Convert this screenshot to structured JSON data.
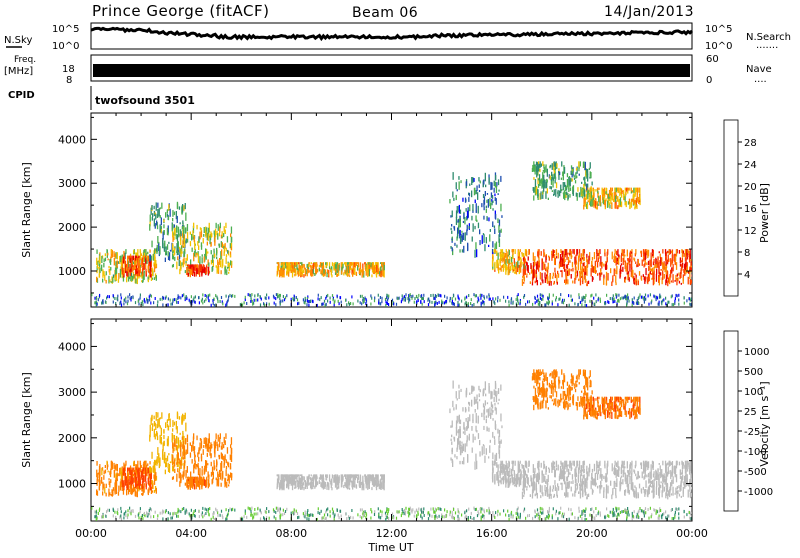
{
  "header": {
    "station": "Prince George (fitACF)",
    "beam": "Beam 06",
    "date": "14/Jan/2013"
  },
  "nsky_panel": {
    "left_label": "N.Sky",
    "right_label": "N.Search",
    "right_legend": ".......",
    "ticks": [
      "10^5",
      "10^0"
    ]
  },
  "freq_panel": {
    "left_label_line1": "Freq.",
    "left_label_line2": "[MHz]",
    "left_ticks": [
      "18",
      "8"
    ],
    "right_label": "Nave",
    "right_legend": "....",
    "right_ticks": [
      "60",
      "0"
    ]
  },
  "cpid_panel": {
    "label": "CPID",
    "value": "twofsound 3501"
  },
  "power_panel": {
    "y_label": "Slant Range [km]",
    "colorbar_label": "Power [dB]",
    "colorbar_ticks": [
      "28",
      "24",
      "20",
      "16",
      "12",
      "8",
      "4"
    ],
    "colorbar_colors": [
      "#0000ff",
      "#1f4fb0",
      "#2e8b6e",
      "#4caf50",
      "#f2c200",
      "#ff8c00",
      "#ff4500",
      "#e60000"
    ]
  },
  "velocity_panel": {
    "y_label": "Slant Range [km]",
    "colorbar_label": "Velocity [m s⁻¹]",
    "colorbar_ticks": [
      "1000",
      "500",
      "100",
      "25",
      "-25",
      "-100",
      "-500",
      "-1000"
    ],
    "colorbar_colors": [
      "#1f3fb0",
      "#2f6fb0",
      "#2e8b6e",
      "#66cc33",
      "#bbbbbb",
      "#f2b300",
      "#ff8000",
      "#ff4000",
      "#e60000"
    ]
  },
  "x_axis": {
    "label": "Time UT",
    "ticks": [
      "00:00",
      "04:00",
      "08:00",
      "12:00",
      "16:00",
      "20:00",
      "00:00"
    ]
  },
  "chart_data": {
    "type": "heatmap",
    "title": "Prince George (fitACF)",
    "xlabel": "Time UT",
    "ylabel": "Slant Range [km]",
    "x_range_hours": [
      0,
      24
    ],
    "ylim": [
      180,
      4600
    ],
    "y_ticks": [
      1000,
      2000,
      3000,
      4000
    ],
    "power_range_dB": [
      0,
      30
    ],
    "velocity_range_ms": [
      -1000,
      1000
    ],
    "echo_regions": [
      {
        "t_start": 0.2,
        "t_end": 2.6,
        "r_min": 700,
        "r_max": 1500,
        "power_dB": 16,
        "velocity_ms": -150
      },
      {
        "t_start": 1.2,
        "t_end": 2.4,
        "r_min": 850,
        "r_max": 1350,
        "power_dB": 24,
        "velocity_ms": -700
      },
      {
        "t_start": 2.3,
        "t_end": 3.8,
        "r_min": 1200,
        "r_max": 2600,
        "power_dB": 11,
        "velocity_ms": -60
      },
      {
        "t_start": 3.2,
        "t_end": 5.6,
        "r_min": 900,
        "r_max": 2100,
        "power_dB": 16,
        "velocity_ms": -300
      },
      {
        "t_start": 3.8,
        "t_end": 4.7,
        "r_min": 850,
        "r_max": 1150,
        "power_dB": 26,
        "velocity_ms": -400
      },
      {
        "t_start": 7.4,
        "t_end": 11.7,
        "r_min": 850,
        "r_max": 1200,
        "power_dB": 18,
        "velocity_ms": 0
      },
      {
        "t_start": 14.3,
        "t_end": 16.4,
        "r_min": 1300,
        "r_max": 3300,
        "power_dB": 8,
        "velocity_ms": 5
      },
      {
        "t_start": 16.0,
        "t_end": 17.4,
        "r_min": 900,
        "r_max": 1500,
        "power_dB": 18,
        "velocity_ms": 0
      },
      {
        "t_start": 17.2,
        "t_end": 24.0,
        "r_min": 650,
        "r_max": 1500,
        "power_dB": 24,
        "velocity_ms": 0
      },
      {
        "t_start": 19.6,
        "t_end": 21.9,
        "r_min": 2400,
        "r_max": 2900,
        "power_dB": 18,
        "velocity_ms": -400
      },
      {
        "t_start": 17.6,
        "t_end": 20.0,
        "r_min": 2600,
        "r_max": 3500,
        "power_dB": 12,
        "velocity_ms": -300
      }
    ]
  }
}
